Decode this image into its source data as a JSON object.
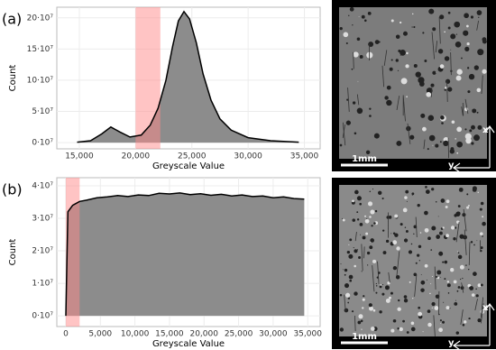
{
  "chart_data": [
    {
      "type": "area",
      "label": "(a)",
      "x_label": "Greyscale Value",
      "y_label": "Count",
      "color": "#8c8c8c",
      "highlight_color": "#ff8a8a",
      "x": [
        14800,
        16000,
        17000,
        17800,
        18600,
        19500,
        20500,
        21300,
        22000,
        22700,
        23300,
        23800,
        24300,
        24800,
        25400,
        26000,
        26700,
        27500,
        28500,
        30000,
        32000,
        34500
      ],
      "values": [
        700000,
        3000000,
        14000000,
        25000000,
        17000000,
        9000000,
        12000000,
        28000000,
        55000000,
        100000000,
        155000000,
        195000000,
        210000000,
        198000000,
        160000000,
        110000000,
        68000000,
        38000000,
        20000000,
        8000000,
        3000000,
        700000
      ],
      "highlight": [
        20000,
        22200
      ],
      "xlim": [
        13000,
        36400
      ],
      "ylim": [
        -10000000,
        217000000
      ],
      "xticks": [
        {
          "value": 15000,
          "label": "15,000"
        },
        {
          "value": 20000,
          "label": "20,000"
        },
        {
          "value": 25000,
          "label": "25,000"
        },
        {
          "value": 30000,
          "label": "30,000"
        },
        {
          "value": 35000,
          "label": "35,000"
        }
      ],
      "yticks": [
        {
          "value": 0,
          "label": "0·10⁷"
        },
        {
          "value": 50000000,
          "label": "5·10⁷"
        },
        {
          "value": 100000000,
          "label": "10·10⁷"
        },
        {
          "value": 150000000,
          "label": "15·10⁷"
        },
        {
          "value": 200000000,
          "label": "20·10⁷"
        }
      ],
      "grid": true
    },
    {
      "type": "area",
      "label": "(b)",
      "x_label": "Greyscale Value",
      "y_label": "Count",
      "color": "#8c8c8c",
      "highlight_color": "#ff8a8a",
      "x": [
        0,
        300,
        1000,
        2000,
        3000,
        4500,
        6000,
        7500,
        9000,
        10500,
        12000,
        13500,
        15000,
        16500,
        18000,
        19500,
        21000,
        22500,
        24000,
        25500,
        27000,
        28500,
        30000,
        31500,
        33000,
        34500
      ],
      "values": [
        0,
        32000000,
        34000000,
        35200000,
        35600000,
        36300000,
        36600000,
        37000000,
        36700000,
        37200000,
        37000000,
        37700000,
        37500000,
        37800000,
        37300000,
        37600000,
        37100000,
        37400000,
        36900000,
        37200000,
        36700000,
        36900000,
        36300000,
        36600000,
        36100000,
        35900000
      ],
      "highlight": [
        0,
        2000
      ],
      "xlim": [
        -1300,
        36800
      ],
      "ylim": [
        -3300000,
        42500000
      ],
      "xticks": [
        0,
        {
          "value": 5000,
          "label": "5,000"
        },
        {
          "value": 10000,
          "label": "10,000"
        },
        {
          "value": 15000,
          "label": "15,000"
        },
        {
          "value": 20000,
          "label": "20,000"
        },
        {
          "value": 25000,
          "label": "25,000"
        },
        {
          "value": 30000,
          "label": "30,000"
        },
        {
          "value": 35000,
          "label": "35,000"
        }
      ],
      "yticks": [
        {
          "value": 0,
          "label": "0·10⁷"
        },
        {
          "value": 10000000,
          "label": "1·10⁷"
        },
        {
          "value": 20000000,
          "label": "2·10⁷"
        },
        {
          "value": 30000000,
          "label": "3·10⁷"
        },
        {
          "value": 40000000,
          "label": "4·10⁷"
        }
      ],
      "grid": true
    }
  ],
  "images": [
    {
      "scale": "1mm",
      "x_axis": "x",
      "y_axis": "y"
    },
    {
      "scale": "1mm",
      "x_axis": "x",
      "y_axis": "y"
    }
  ]
}
